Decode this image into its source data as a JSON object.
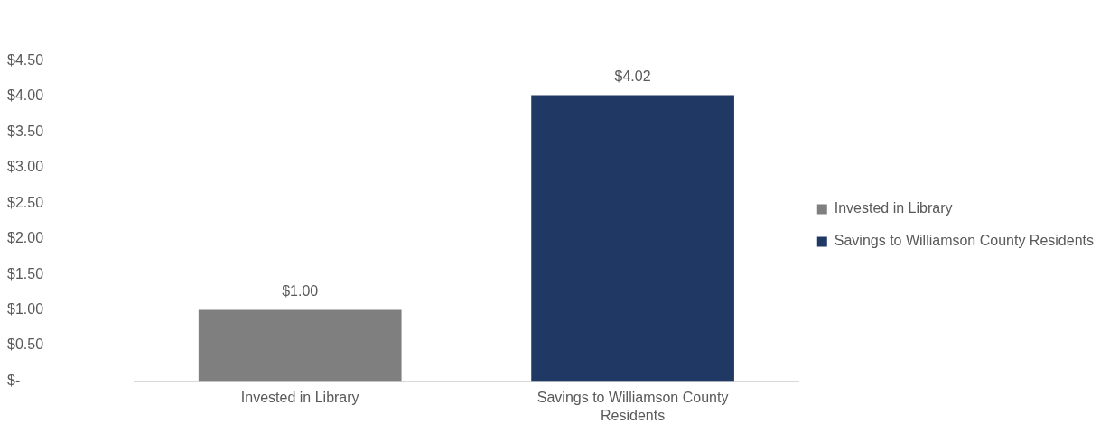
{
  "chart_data": {
    "type": "bar",
    "categories": [
      "Invested in Library",
      "Savings to Williamson County Residents"
    ],
    "series": [
      {
        "name": "Invested in Library",
        "color": "#7f7f7f",
        "values": [
          1.0,
          null
        ],
        "value_labels": [
          "$1.00",
          null
        ]
      },
      {
        "name": "Savings to Williamson County Residents",
        "color": "#203864",
        "values": [
          null,
          4.02
        ],
        "value_labels": [
          null,
          "$4.02"
        ]
      }
    ],
    "ylim": [
      0,
      4.5
    ],
    "yticks": [
      {
        "value": 0,
        "label": "$-"
      },
      {
        "value": 0.5,
        "label": "$0.50"
      },
      {
        "value": 1,
        "label": "$1.00"
      },
      {
        "value": 1.5,
        "label": "$1.50"
      },
      {
        "value": 2,
        "label": "$2.00"
      },
      {
        "value": 2.5,
        "label": "$2.50"
      },
      {
        "value": 3,
        "label": "$3.00"
      },
      {
        "value": 3.5,
        "label": "$3.50"
      },
      {
        "value": 4,
        "label": "$4.00"
      },
      {
        "value": 4.5,
        "label": "$4.50"
      }
    ],
    "grid": false,
    "legend": "right"
  }
}
